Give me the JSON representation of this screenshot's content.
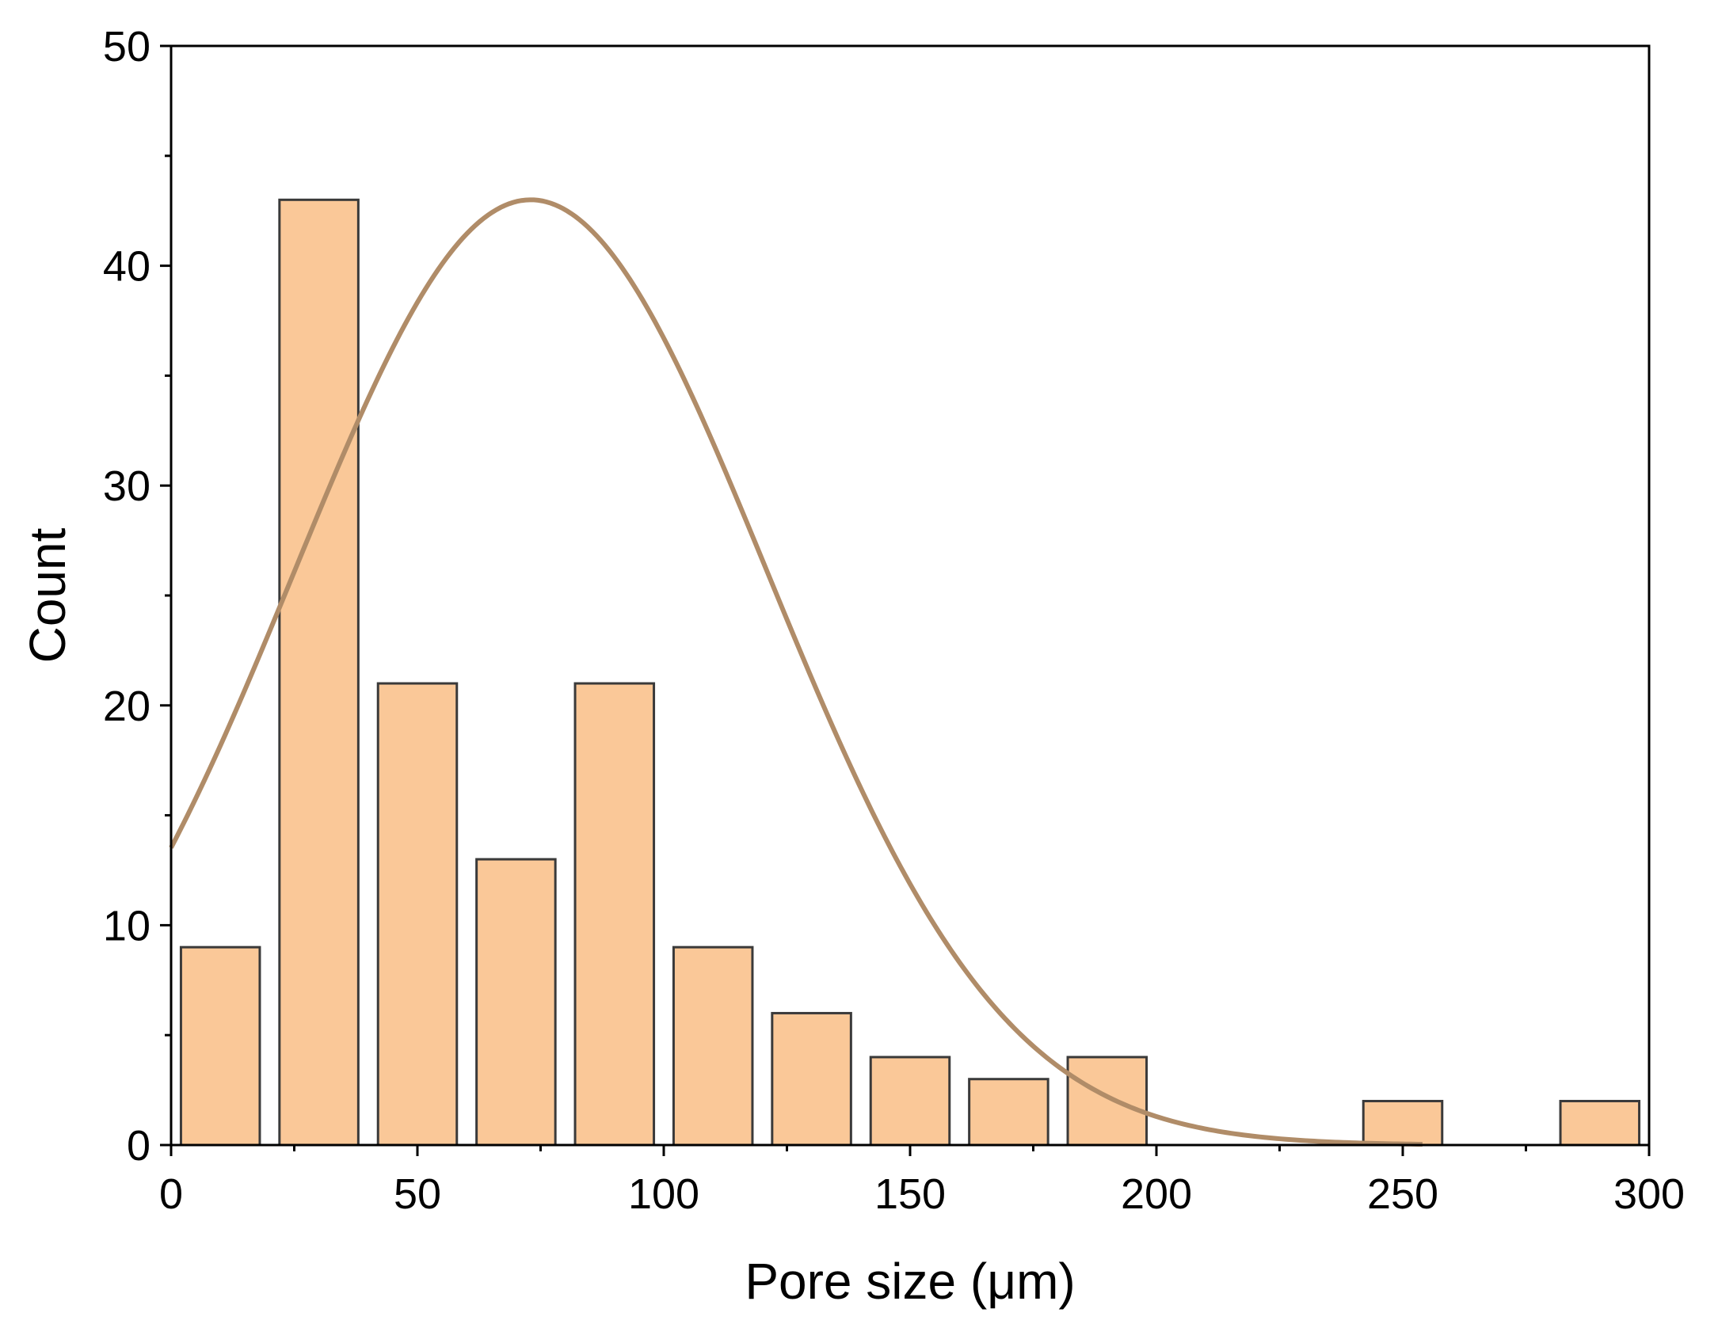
{
  "chart_data": {
    "type": "bar",
    "title": "",
    "xlabel": "Pore size (μm)",
    "ylabel": "Count",
    "xlim": [
      0,
      300
    ],
    "ylim": [
      0,
      50
    ],
    "x_ticks": [
      "0",
      "50",
      "100",
      "150",
      "200",
      "250",
      "300"
    ],
    "y_ticks": [
      "0",
      "10",
      "20",
      "30",
      "40",
      "50"
    ],
    "bin_width": 20,
    "bins": [
      {
        "center": 10,
        "count": 9
      },
      {
        "center": 30,
        "count": 43
      },
      {
        "center": 50,
        "count": 21
      },
      {
        "center": 70,
        "count": 13
      },
      {
        "center": 90,
        "count": 21
      },
      {
        "center": 110,
        "count": 9
      },
      {
        "center": 130,
        "count": 6
      },
      {
        "center": 150,
        "count": 4
      },
      {
        "center": 170,
        "count": 3
      },
      {
        "center": 190,
        "count": 4
      },
      {
        "center": 250,
        "count": 2
      },
      {
        "center": 290,
        "count": 2
      }
    ],
    "fit_curve": {
      "type": "normal",
      "mean": 73,
      "sd": 48,
      "peak": 43,
      "x_range": [
        0,
        254
      ]
    },
    "grid": false,
    "legend": "none",
    "colors": {
      "bar_fill": "#FAC898",
      "bar_edge": "#3a3a3a",
      "curve": "#B08C68",
      "axis": "#000000"
    }
  }
}
